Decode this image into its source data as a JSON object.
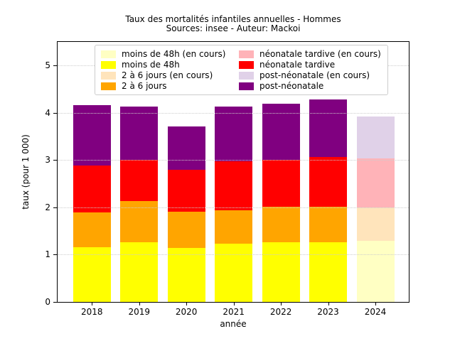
{
  "figure": {
    "title_line1": "Taux des mortalités infantiles annuelles - Hommes",
    "title_line2": "Sources: insee - Auteur: Mackoi"
  },
  "chart_data": {
    "type": "bar",
    "stacked": true,
    "title": "Taux des mortalités infantiles annuelles - Hommes",
    "subtitle": "Sources: insee - Auteur: Mackoi",
    "xlabel": "année",
    "ylabel": "taux (pour 1 000)",
    "ylim": [
      0,
      5.5
    ],
    "yticks": [
      0,
      1,
      2,
      3,
      4,
      5
    ],
    "grid": "horizontal-dotted",
    "legend_position": "upper-center-2-columns",
    "categories": [
      "2018",
      "2019",
      "2020",
      "2021",
      "2022",
      "2023",
      "2024"
    ],
    "series": [
      {
        "name": "moins de 48h (en cours)",
        "color": "#ffffc3",
        "values": [
          0,
          0,
          0,
          0,
          0,
          0,
          1.3
        ]
      },
      {
        "name": "moins de 48h",
        "color": "#ffff00",
        "values": [
          1.15,
          1.26,
          1.14,
          1.23,
          1.26,
          1.27,
          0
        ]
      },
      {
        "name": "2 à 6 jours (en cours)",
        "color": "#ffe4bb",
        "values": [
          0,
          0,
          0,
          0,
          0,
          0,
          0.7
        ]
      },
      {
        "name": "2 à 6 jours",
        "color": "#ffa500",
        "values": [
          0.74,
          0.87,
          0.77,
          0.71,
          0.76,
          0.75,
          0
        ]
      },
      {
        "name": "néonatale tardive (en cours)",
        "color": "#ffb3b8",
        "values": [
          0,
          0,
          0,
          0,
          0,
          0,
          1.03
        ]
      },
      {
        "name": "néonatale tardive",
        "color": "#ff0000",
        "values": [
          1.0,
          0.87,
          0.89,
          1.03,
          0.99,
          1.04,
          0
        ]
      },
      {
        "name": "post-néonatale (en cours)",
        "color": "#e0d1e8",
        "values": [
          0,
          0,
          0,
          0,
          0,
          0,
          0.89
        ]
      },
      {
        "name": "post-néonatale",
        "color": "#800080",
        "values": [
          1.27,
          1.14,
          0.91,
          1.17,
          1.18,
          1.22,
          0
        ]
      }
    ],
    "totals": [
      4.16,
      4.14,
      3.71,
      4.14,
      4.19,
      4.28,
      3.92
    ]
  }
}
